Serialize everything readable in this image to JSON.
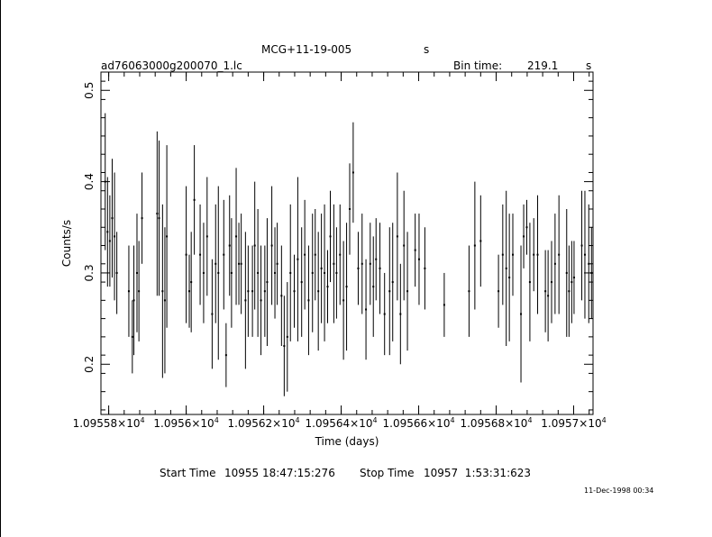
{
  "header": {
    "object_name": "MCG+11-19-005",
    "object_unit": "s",
    "file_name": "ad76063000g200070_1.lc",
    "bin_label": "Bin time:",
    "bin_value": "219.1",
    "bin_unit": "s"
  },
  "footer": {
    "start_label": "Start Time",
    "start_value": "10955 18:47:15:276",
    "stop_label": "Stop Time",
    "stop_value": "10957  1:53:31:623",
    "timestamp": "11-Dec-1998 00:34"
  },
  "chart_data": {
    "type": "scatter",
    "xlabel": "Time (days)",
    "ylabel": "Counts/s",
    "xlim": [
      10955.78,
      10957.05
    ],
    "ylim": [
      0.145,
      0.52
    ],
    "grid": false,
    "x_ticks": [
      {
        "value": 10955.8,
        "mantissa": "1.09558",
        "exp": "4"
      },
      {
        "value": 10956.0,
        "mantissa": "1.0956",
        "exp": "4"
      },
      {
        "value": 10956.2,
        "mantissa": "1.09562",
        "exp": "4"
      },
      {
        "value": 10956.4,
        "mantissa": "1.09564",
        "exp": "4"
      },
      {
        "value": 10956.6,
        "mantissa": "1.09566",
        "exp": "4"
      },
      {
        "value": 10956.8,
        "mantissa": "1.09568",
        "exp": "4"
      },
      {
        "value": 10957.0,
        "mantissa": "1.0957",
        "exp": "4"
      }
    ],
    "y_ticks": [
      {
        "value": 0.2,
        "label": "0.2"
      },
      {
        "value": 0.3,
        "label": "0.3"
      },
      {
        "value": 0.4,
        "label": "0.4"
      },
      {
        "value": 0.5,
        "label": "0.5"
      }
    ],
    "series": [
      {
        "x": [
          10955.791,
          10955.797,
          10955.803,
          10955.809,
          10955.815,
          10955.821,
          10955.852,
          10955.861,
          10955.865,
          10955.873,
          10955.878,
          10955.886,
          10955.925,
          10955.93,
          10955.939,
          10955.945,
          10955.95,
          10956.0,
          10956.008,
          10956.013,
          10956.021,
          10956.036,
          10956.045,
          10956.054,
          10956.067,
          10956.076,
          10956.083,
          10956.097,
          10956.103,
          10956.112,
          10956.117,
          10956.129,
          10956.136,
          10956.142,
          10956.153,
          10956.16,
          10956.171,
          10956.177,
          10956.185,
          10956.193,
          10956.203,
          10956.209,
          10956.221,
          10956.229,
          10956.235,
          10956.246,
          10956.253,
          10956.261,
          10956.269,
          10956.279,
          10956.288,
          10956.298,
          10956.306,
          10956.316,
          10956.326,
          10956.333,
          10956.341,
          10956.349,
          10956.357,
          10956.365,
          10956.372,
          10956.381,
          10956.388,
          10956.397,
          10956.406,
          10956.414,
          10956.422,
          10956.431,
          10956.444,
          10956.454,
          10956.464,
          10956.475,
          10956.483,
          10956.49,
          10956.5,
          10956.512,
          10956.525,
          10956.533,
          10956.545,
          10956.553,
          10956.562,
          10956.571,
          10956.591,
          10956.601,
          10956.616,
          10956.666,
          10956.73,
          10956.745,
          10956.76,
          10956.806,
          10956.817,
          10956.826,
          10956.834,
          10956.843,
          10956.864,
          10956.871,
          10956.879,
          10956.887,
          10956.897,
          10956.907,
          10956.927,
          10956.934,
          10956.943,
          10956.952,
          10956.962,
          10956.982,
          10956.988,
          10956.995,
          10957.001,
          10957.021,
          10957.029,
          10957.039,
          10957.046
        ],
        "y": [
          0.4,
          0.345,
          0.335,
          0.36,
          0.34,
          0.3,
          0.28,
          0.23,
          0.27,
          0.3,
          0.28,
          0.36,
          0.365,
          0.36,
          0.28,
          0.27,
          0.34,
          0.32,
          0.28,
          0.29,
          0.38,
          0.32,
          0.3,
          0.34,
          0.255,
          0.31,
          0.3,
          0.32,
          0.21,
          0.33,
          0.3,
          0.34,
          0.31,
          0.31,
          0.27,
          0.28,
          0.28,
          0.33,
          0.3,
          0.27,
          0.28,
          0.29,
          0.33,
          0.3,
          0.31,
          0.275,
          0.22,
          0.23,
          0.3,
          0.28,
          0.315,
          0.29,
          0.32,
          0.27,
          0.3,
          0.32,
          0.28,
          0.305,
          0.3,
          0.285,
          0.34,
          0.31,
          0.3,
          0.32,
          0.27,
          0.285,
          0.37,
          0.41,
          0.305,
          0.31,
          0.26,
          0.31,
          0.285,
          0.315,
          0.305,
          0.255,
          0.28,
          0.29,
          0.34,
          0.255,
          0.33,
          0.28,
          0.325,
          0.315,
          0.305,
          0.265,
          0.28,
          0.33,
          0.335,
          0.28,
          0.32,
          0.305,
          0.295,
          0.32,
          0.255,
          0.34,
          0.35,
          0.29,
          0.32,
          0.32,
          0.28,
          0.275,
          0.29,
          0.31,
          0.32,
          0.3,
          0.28,
          0.29,
          0.295,
          0.33,
          0.32,
          0.31,
          0.3
        ],
        "err": [
          0.075,
          0.06,
          0.05,
          0.065,
          0.07,
          0.045,
          0.05,
          0.04,
          0.06,
          0.065,
          0.055,
          0.05,
          0.09,
          0.085,
          0.095,
          0.08,
          0.1,
          0.075,
          0.04,
          0.055,
          0.06,
          0.055,
          0.055,
          0.065,
          0.06,
          0.065,
          0.095,
          0.06,
          0.035,
          0.055,
          0.06,
          0.075,
          0.045,
          0.055,
          0.075,
          0.05,
          0.05,
          0.07,
          0.07,
          0.06,
          0.05,
          0.07,
          0.065,
          0.05,
          0.045,
          0.055,
          0.055,
          0.06,
          0.075,
          0.04,
          0.09,
          0.06,
          0.06,
          0.06,
          0.065,
          0.05,
          0.065,
          0.06,
          0.075,
          0.04,
          0.05,
          0.065,
          0.05,
          0.055,
          0.065,
          0.07,
          0.05,
          0.055,
          0.04,
          0.055,
          0.055,
          0.045,
          0.055,
          0.045,
          0.05,
          0.045,
          0.07,
          0.065,
          0.07,
          0.055,
          0.06,
          0.065,
          0.04,
          0.05,
          0.045,
          0.035,
          0.05,
          0.07,
          0.05,
          0.04,
          0.055,
          0.085,
          0.07,
          0.045,
          0.075,
          0.035,
          0.03,
          0.065,
          0.04,
          0.065,
          0.045,
          0.05,
          0.045,
          0.055,
          0.065,
          0.07,
          0.05,
          0.045,
          0.04,
          0.06,
          0.07,
          0.065,
          0.05
        ]
      }
    ]
  }
}
